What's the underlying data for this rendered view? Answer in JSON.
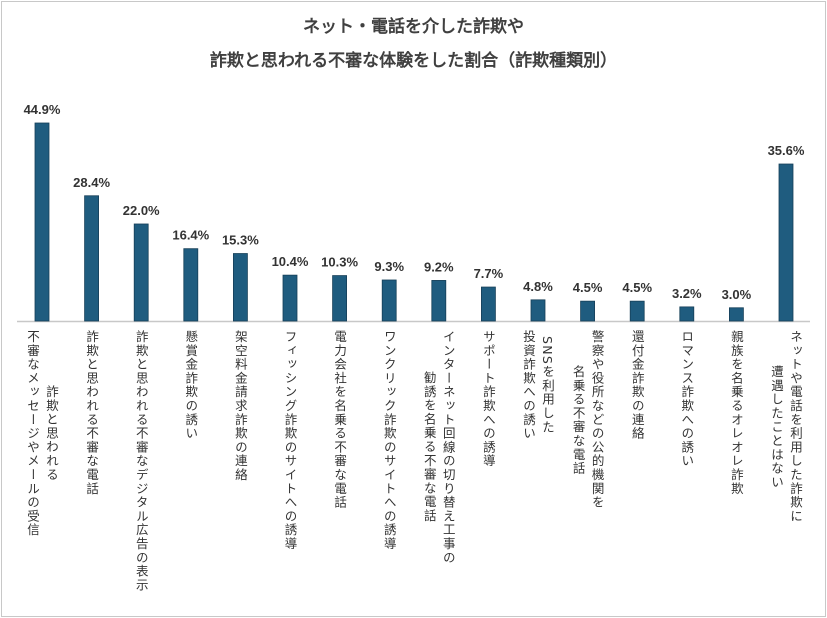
{
  "chart_data": {
    "type": "bar",
    "title": [
      "ネット・電話を介した詐欺や",
      "詐欺と思われる不審な体験をした割合（詐欺種類別）"
    ],
    "xlabel": "",
    "ylabel": "",
    "ylim": [
      0,
      50
    ],
    "grid": false,
    "unit": "%",
    "categories": [
      "詐欺と思われる\n不審なメッセージやメールの受信",
      "詐欺と思われる不審な電話",
      "詐欺と思われる不審なデジタル広告の表示",
      "懸賞金詐欺の誘い",
      "架空料金請求詐欺の連絡",
      "フィッシング詐欺のサイトへの誘導",
      "電力会社を名乗る不審な電話",
      "ワンクリック詐欺のサイトへの誘導",
      "インターネット回線の切り替え工事の\n勧誘を名乗る不審な電話",
      "サポート詐欺への誘導",
      "SNSを利用した\n投資詐欺への誘い",
      "警察や役所などの公的機関を\n名乗る不審な電話",
      "還付金詐欺の連絡",
      "ロマンス詐欺への誘い",
      "親族を名乗るオレオレ詐欺",
      "ネットや電話を利用した詐欺に\n遭遇したことはない"
    ],
    "values": [
      44.9,
      28.4,
      22.0,
      16.4,
      15.3,
      10.4,
      10.3,
      9.3,
      9.2,
      7.7,
      4.8,
      4.5,
      4.5,
      3.2,
      3.0,
      35.6
    ],
    "data_labels": [
      "44.9%",
      "28.4%",
      "22.0%",
      "16.4%",
      "15.3%",
      "10.4%",
      "10.3%",
      "9.3%",
      "9.2%",
      "7.7%",
      "4.8%",
      "4.5%",
      "4.5%",
      "3.2%",
      "3.0%",
      "35.6%"
    ],
    "bar_color": "#1f5c7f",
    "axis_color": "#c8c8c8"
  }
}
